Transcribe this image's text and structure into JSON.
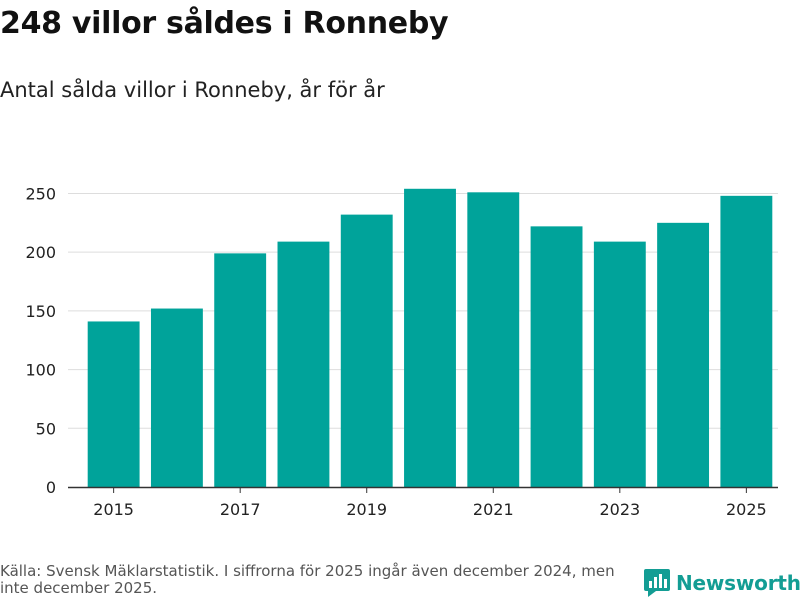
{
  "title": "248 villor såldes i Ronneby",
  "subtitle": "Antal sålda villor i Ronneby, år för år",
  "source": "Källa: Svensk Mäklarstatistik. I siffrorna för 2025 ingår även december 2024, men inte december 2025.",
  "brand": "Newsworthy",
  "colors": {
    "bar": "#00a39a",
    "grid": "#dddddd",
    "axis": "#333333",
    "brand": "#139d94"
  },
  "chart_data": {
    "type": "bar",
    "title": "248 villor såldes i Ronneby",
    "xlabel": "",
    "ylabel": "",
    "categories": [
      "2015",
      "2016",
      "2017",
      "2018",
      "2019",
      "2020",
      "2021",
      "2022",
      "2023",
      "2024",
      "2025"
    ],
    "values": [
      141,
      152,
      199,
      209,
      232,
      254,
      251,
      222,
      209,
      225,
      248
    ],
    "ylim": [
      0,
      270
    ],
    "yticks": [
      0,
      50,
      100,
      150,
      200,
      250
    ],
    "xtick_labels": [
      "2015",
      "2017",
      "2019",
      "2021",
      "2023",
      "2025"
    ],
    "grid": true
  }
}
